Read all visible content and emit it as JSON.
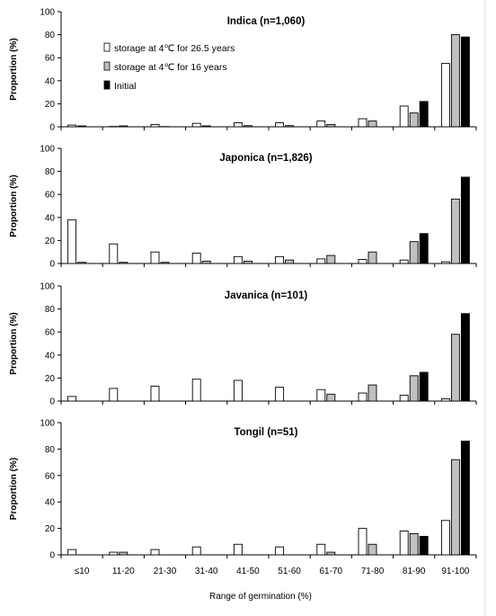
{
  "chart_data": {
    "type": "bar",
    "xlabel": "Range of germination (%)",
    "ylabel": "Proportion (%)",
    "ylim": [
      0,
      100
    ],
    "yticks": [
      0,
      20,
      40,
      60,
      80,
      100
    ],
    "categories": [
      "≤10",
      "11-20",
      "21-30",
      "31-40",
      "41-50",
      "51-60",
      "61-70",
      "71-80",
      "81-90",
      "91-100"
    ],
    "legend": [
      {
        "name": "storage at 4℃ for 26.5 years",
        "color": "#ffffff"
      },
      {
        "name": "storage at 4℃ for 16 years",
        "color": "#c0c0c0"
      },
      {
        "name": "Initial",
        "color": "#000000"
      }
    ],
    "panels": [
      {
        "title": "Indica (n=1,060)",
        "series": [
          {
            "name": "storage at 4℃ for 26.5 years",
            "values": [
              1.5,
              0.3,
              2,
              3,
              3.5,
              3.5,
              5,
              7,
              18,
              55
            ]
          },
          {
            "name": "storage at 4℃ for 16 years",
            "values": [
              0.8,
              0.8,
              0.2,
              0.8,
              1,
              1,
              2,
              5,
              12,
              80
            ]
          },
          {
            "name": "Initial",
            "values": [
              0,
              0,
              0,
              0,
              0,
              0,
              0,
              0,
              22,
              78
            ]
          }
        ]
      },
      {
        "title": "Japonica (n=1,826)",
        "series": [
          {
            "name": "storage at 4℃ for 26.5 years",
            "values": [
              38,
              17,
              10,
              9,
              6,
              6,
              4,
              3.5,
              3,
              1.5
            ]
          },
          {
            "name": "storage at 4℃ for 16 years",
            "values": [
              1,
              1,
              1,
              2,
              2,
              3,
              7,
              10,
              19,
              56
            ]
          },
          {
            "name": "Initial",
            "values": [
              0,
              0,
              0,
              0,
              0,
              0,
              0,
              0,
              26,
              75
            ]
          }
        ]
      },
      {
        "title": "Javanica (n=101)",
        "series": [
          {
            "name": "storage at 4℃ for 26.5 years",
            "values": [
              4,
              11,
              13,
              19,
              18,
              12,
              10,
              7,
              5,
              2
            ]
          },
          {
            "name": "storage at 4℃ for 16 years",
            "values": [
              0,
              0,
              0,
              0,
              0,
              0,
              6,
              14,
              22,
              58
            ]
          },
          {
            "name": "Initial",
            "values": [
              0,
              0,
              0,
              0,
              0,
              0,
              0,
              0,
              25,
              76
            ]
          }
        ]
      },
      {
        "title": "Tongil (n=51)",
        "series": [
          {
            "name": "storage at 4℃ for 26.5 years",
            "values": [
              4,
              2,
              4,
              6,
              8,
              6,
              8,
              20,
              18,
              26
            ]
          },
          {
            "name": "storage at 4℃ for 16 years",
            "values": [
              0,
              2,
              0,
              0,
              0,
              0,
              2,
              8,
              16,
              72
            ]
          },
          {
            "name": "Initial",
            "values": [
              0,
              0,
              0,
              0,
              0,
              0,
              0,
              0,
              14,
              86
            ]
          }
        ]
      }
    ]
  }
}
